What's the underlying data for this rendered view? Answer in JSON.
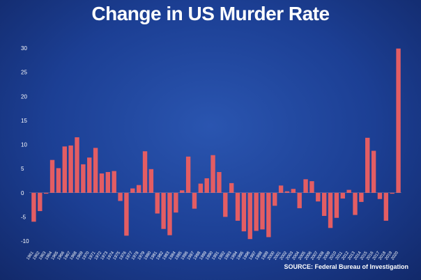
{
  "header": {
    "title": "Change in US Murder Rate"
  },
  "footer": {
    "source": "SOURCE: Federal Bureau of Investigation"
  },
  "colors": {
    "bar": "#e35d63",
    "gridline": "#ffffff",
    "background": "#1c3f94"
  },
  "chart_data": {
    "type": "bar",
    "title": "Change in US Murder Rate",
    "xlabel": "",
    "ylabel": "",
    "ylim": [
      -10,
      30
    ],
    "yticks": [
      -10,
      -5,
      0,
      5,
      10,
      15,
      20,
      25,
      30
    ],
    "grid": false,
    "categories": [
      "1961",
      "1962",
      "1963",
      "1964",
      "1965",
      "1966",
      "1967",
      "1968",
      "1969",
      "1970",
      "1971",
      "1972",
      "1973",
      "1974",
      "1975",
      "1976",
      "1977",
      "1978",
      "1979",
      "1980",
      "1981",
      "1982",
      "1983",
      "1984",
      "1985",
      "1986",
      "1987",
      "1988",
      "1989",
      "1990",
      "1991",
      "1992",
      "1993",
      "1994",
      "1995",
      "1996",
      "1997",
      "1998",
      "1999",
      "2000",
      "2001",
      "2002",
      "2003",
      "2004",
      "2005",
      "2006",
      "2007",
      "2008",
      "2009",
      "2010",
      "2011",
      "2012",
      "2013",
      "2014",
      "2015",
      "2016",
      "2017",
      "2018",
      "2019",
      "2020"
    ],
    "values": [
      -6,
      -3.8,
      -0.2,
      6.8,
      5.1,
      9.6,
      9.8,
      11.5,
      5.9,
      7.3,
      9.3,
      4,
      4.3,
      4.5,
      -1.7,
      -8.9,
      0.9,
      1.6,
      8.6,
      4.9,
      -4.3,
      -7.5,
      -8.8,
      -4.1,
      0.5,
      7.5,
      -3.3,
      1.9,
      3,
      7.8,
      4.3,
      -5,
      2,
      -5.8,
      -8,
      -9.6,
      -7.9,
      -7.6,
      -9.2,
      -2.7,
      1.5,
      0.3,
      0.8,
      -3.2,
      2.8,
      2.4,
      -1.8,
      -4.8,
      -7.3,
      -5.2,
      -1.2,
      0.6,
      -4.6,
      -1.9,
      11.4,
      8.7,
      -1.3,
      -5.8,
      -0.2,
      29.9
    ]
  }
}
